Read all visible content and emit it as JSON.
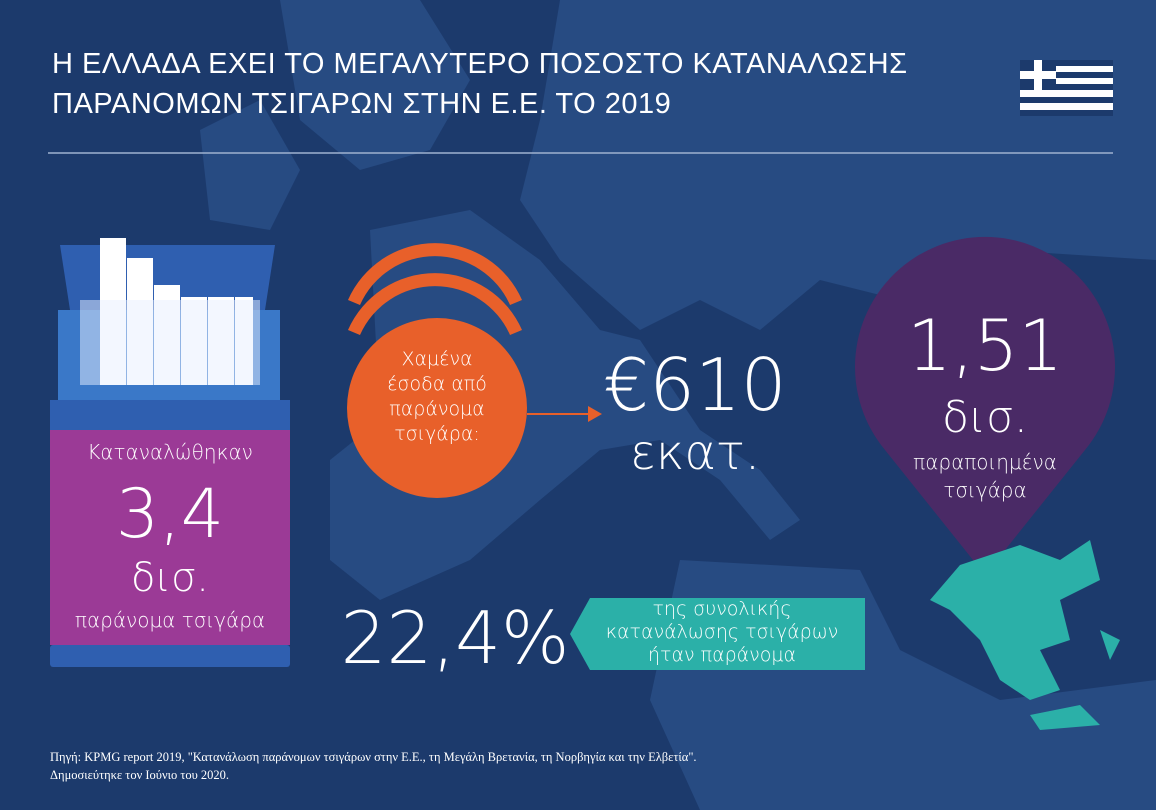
{
  "header": {
    "title_lines": [
      "Η ΕΛΛΑΔΑ ΕΧΕΙ ΤΟ ΜΕΓΑΛΥΤΕΡΟ ΠΟΣΟΣΤΟ ΚΑΤΑΝΑΛΩΣΗΣ",
      "ΠΑΡΑΝΟΜΩΝ ΤΣΙΓΑΡΩΝ ΣΤΗΝ Ε.Ε. ΤΟ 2019"
    ]
  },
  "pack": {
    "label": "Καταναλώθηκαν",
    "value": "3,4",
    "unit": "δισ.",
    "caption": "παράνομα τσιγάρα"
  },
  "lost_revenue": {
    "label_lines": [
      "Χαμένα",
      "έσοδα από",
      "παράνομα",
      "τσιγάρα:"
    ],
    "value": "€610",
    "unit": "εκατ."
  },
  "counterfeit": {
    "value": "1,51",
    "unit": "δισ.",
    "caption_lines": [
      "παραποιημένα",
      "τσιγάρα"
    ]
  },
  "share": {
    "value": "22,4%",
    "caption_lines": [
      "της συνολικής",
      "κατανάλωσης τσιγάρων",
      "ήταν παράνομα"
    ]
  },
  "source": {
    "label": "Πηγή:",
    "text": "KPMG report 2019, \"Κατανάλωση παράνομων τσιγάρων στην Ε.Ε., τη Μεγάλη Βρετανία, τη Νορβηγία και την Ελβετία\".",
    "published": "Δημοσιεύτηκε τον Ιούνιο του 2020."
  }
}
